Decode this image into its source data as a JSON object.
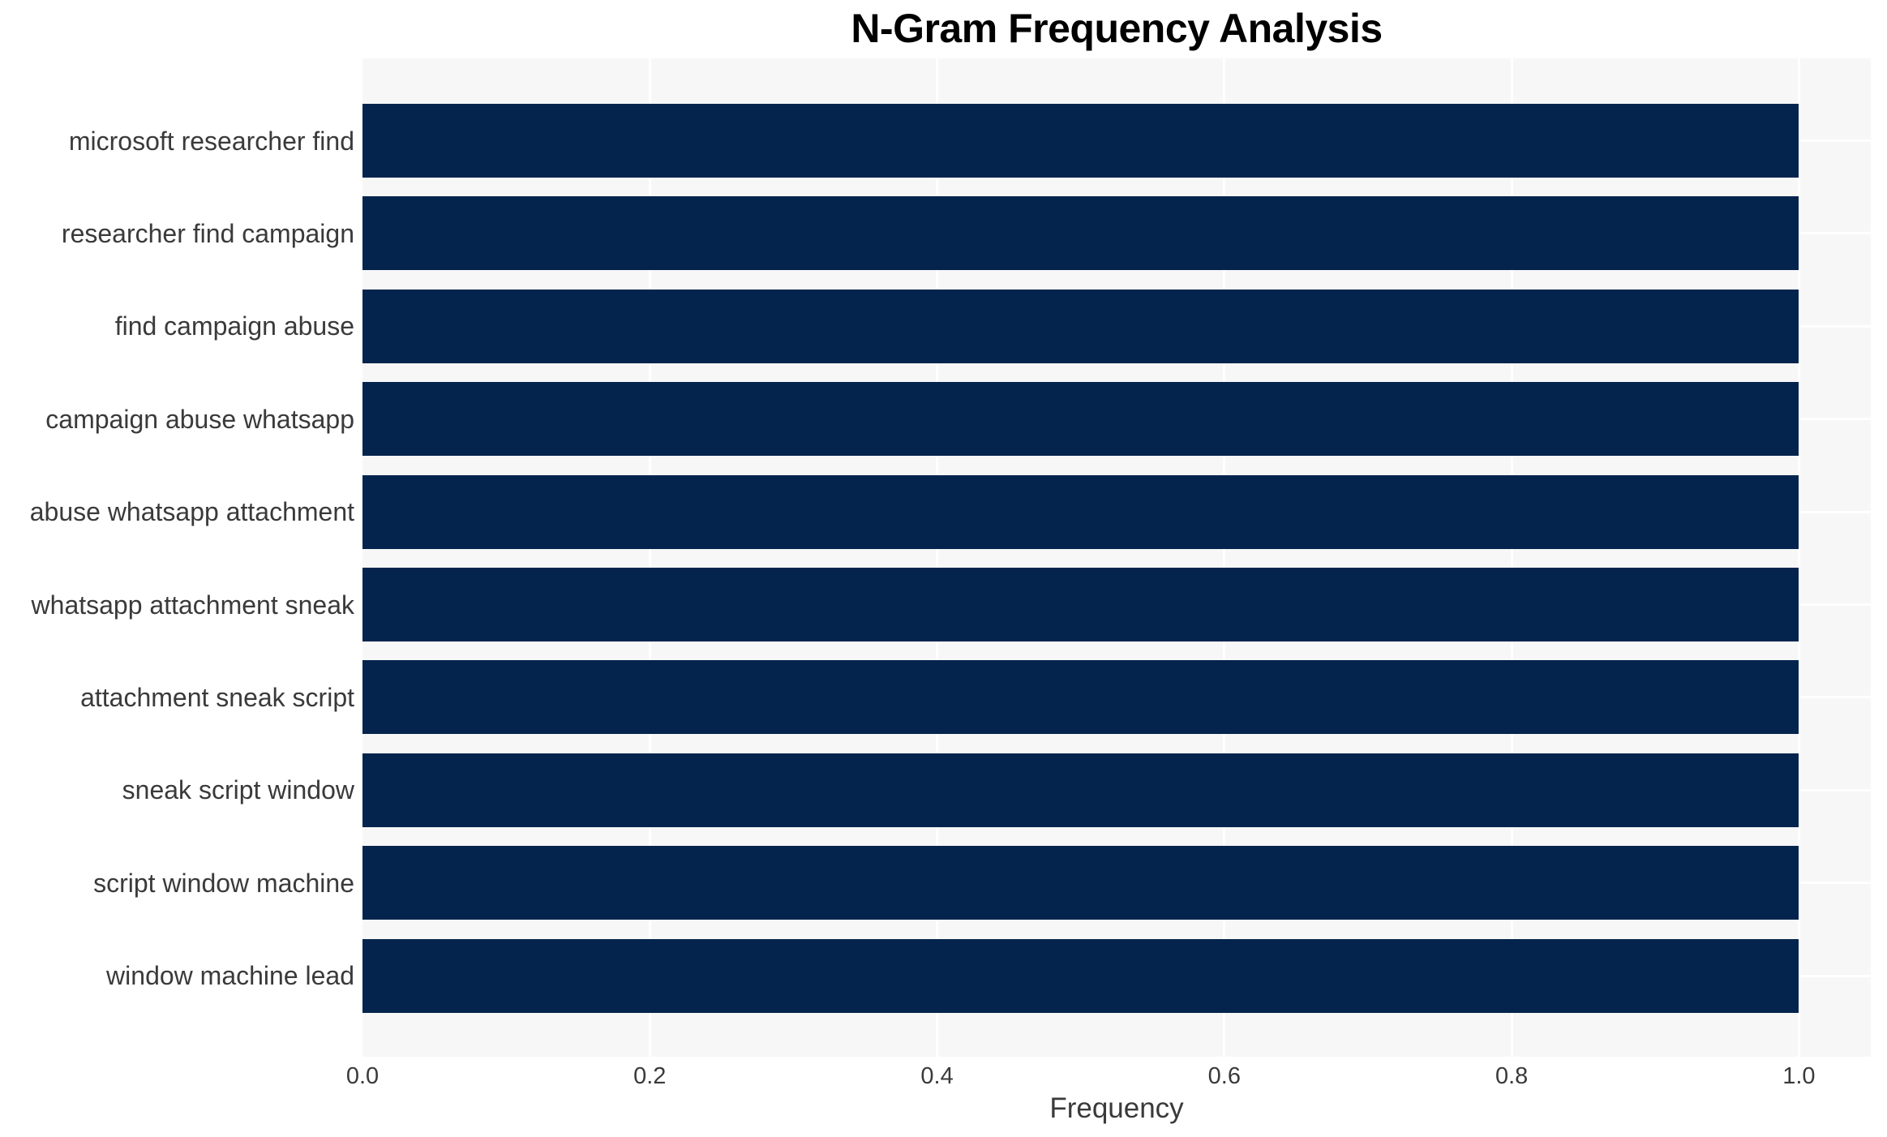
{
  "chart_data": {
    "type": "bar",
    "orientation": "horizontal",
    "title": "N-Gram Frequency Analysis",
    "xlabel": "Frequency",
    "ylabel": "",
    "categories": [
      "microsoft researcher find",
      "researcher find campaign",
      "find campaign abuse",
      "campaign abuse whatsapp",
      "abuse whatsapp attachment",
      "whatsapp attachment sneak",
      "attachment sneak script",
      "sneak script window",
      "script window machine",
      "window machine lead"
    ],
    "values": [
      1.0,
      1.0,
      1.0,
      1.0,
      1.0,
      1.0,
      1.0,
      1.0,
      1.0,
      1.0
    ],
    "xlim": [
      0,
      1.05
    ],
    "xticks": [
      0.0,
      0.2,
      0.4,
      0.6,
      0.8,
      1.0
    ],
    "xtick_labels": [
      "0.0",
      "0.2",
      "0.4",
      "0.6",
      "0.8",
      "1.0"
    ],
    "grid": true,
    "legend": false,
    "colors": {
      "bar": "#04244d",
      "plot_background": "#f7f7f7",
      "gridline": "#ffffff",
      "title_text": "#000000",
      "axis_text": "#3a3a3a"
    }
  }
}
